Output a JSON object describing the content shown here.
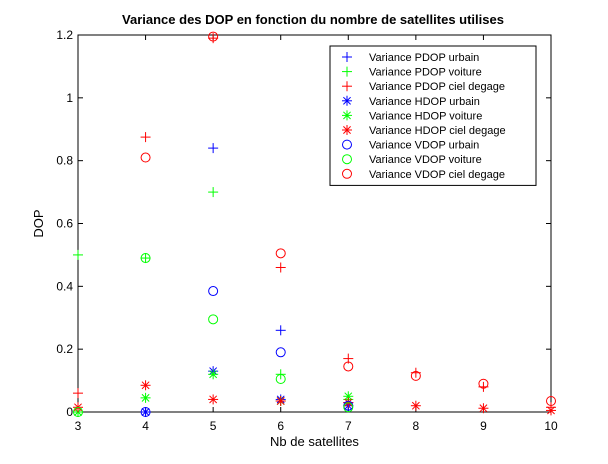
{
  "chart_data": {
    "type": "scatter",
    "title": "Variance des DOP en fonction du nombre de satellites utilises",
    "xlabel": "Nb de satellites",
    "ylabel": "DOP",
    "xlim": [
      3,
      10
    ],
    "ylim": [
      0,
      1.2
    ],
    "x_ticks": [
      3,
      4,
      5,
      6,
      7,
      8,
      9,
      10
    ],
    "y_ticks": [
      0,
      0.2,
      0.4,
      0.6,
      0.8,
      1,
      1.2
    ],
    "x_tick_labels": [
      "3",
      "4",
      "5",
      "6",
      "7",
      "8",
      "9",
      "10"
    ],
    "y_tick_labels": [
      "0",
      "0.2",
      "0.4",
      "0.6",
      "0.8",
      "1",
      "1.2"
    ],
    "grid": false,
    "legend_position": "top-right",
    "series": [
      {
        "name": "Variance PDOP urbain",
        "marker": "plus",
        "color": "#0000ff",
        "points": [
          [
            4,
            0.0
          ],
          [
            5,
            0.84
          ],
          [
            6,
            0.26
          ],
          [
            7,
            0.03
          ]
        ]
      },
      {
        "name": "Variance PDOP voiture",
        "marker": "plus",
        "color": "#00ff00",
        "points": [
          [
            3,
            0.5
          ],
          [
            4,
            0.49
          ],
          [
            5,
            0.7
          ],
          [
            6,
            0.12
          ],
          [
            7,
            0.04
          ]
        ]
      },
      {
        "name": "Variance PDOP ciel degage",
        "marker": "plus",
        "color": "#ff0000",
        "points": [
          [
            3,
            0.06
          ],
          [
            4,
            0.875
          ],
          [
            5,
            1.19
          ],
          [
            6,
            0.46
          ],
          [
            7,
            0.17
          ],
          [
            8,
            0.125
          ],
          [
            9,
            0.08
          ],
          [
            10,
            0.015
          ]
        ]
      },
      {
        "name": "Variance HDOP urbain",
        "marker": "asterisk",
        "color": "#0000ff",
        "points": [
          [
            4,
            0.0
          ],
          [
            5,
            0.13
          ],
          [
            6,
            0.04
          ],
          [
            7,
            0.02
          ]
        ]
      },
      {
        "name": "Variance HDOP voiture",
        "marker": "asterisk",
        "color": "#00ff00",
        "points": [
          [
            3,
            0.0
          ],
          [
            4,
            0.045
          ],
          [
            5,
            0.12
          ],
          [
            6,
            0.035
          ],
          [
            7,
            0.05
          ]
        ]
      },
      {
        "name": "Variance HDOP ciel degage",
        "marker": "asterisk",
        "color": "#ff0000",
        "points": [
          [
            3,
            0.015
          ],
          [
            4,
            0.085
          ],
          [
            5,
            0.04
          ],
          [
            6,
            0.035
          ],
          [
            7,
            0.03
          ],
          [
            8,
            0.02
          ],
          [
            9,
            0.012
          ],
          [
            10,
            0.005
          ]
        ]
      },
      {
        "name": "Variance VDOP urbain",
        "marker": "circle",
        "color": "#0000ff",
        "points": [
          [
            4,
            0.0
          ],
          [
            5,
            0.385
          ],
          [
            6,
            0.19
          ],
          [
            7,
            0.02
          ]
        ]
      },
      {
        "name": "Variance VDOP voiture",
        "marker": "circle",
        "color": "#00ff00",
        "points": [
          [
            3,
            0.0
          ],
          [
            4,
            0.49
          ],
          [
            5,
            0.295
          ],
          [
            6,
            0.105
          ],
          [
            7,
            0.015
          ]
        ]
      },
      {
        "name": "Variance VDOP ciel degage",
        "marker": "circle",
        "color": "#ff0000",
        "points": [
          [
            4,
            0.81
          ],
          [
            5,
            1.195
          ],
          [
            6,
            0.505
          ],
          [
            7,
            0.145
          ],
          [
            8,
            0.115
          ],
          [
            9,
            0.09
          ],
          [
            10,
            0.035
          ]
        ]
      }
    ]
  }
}
